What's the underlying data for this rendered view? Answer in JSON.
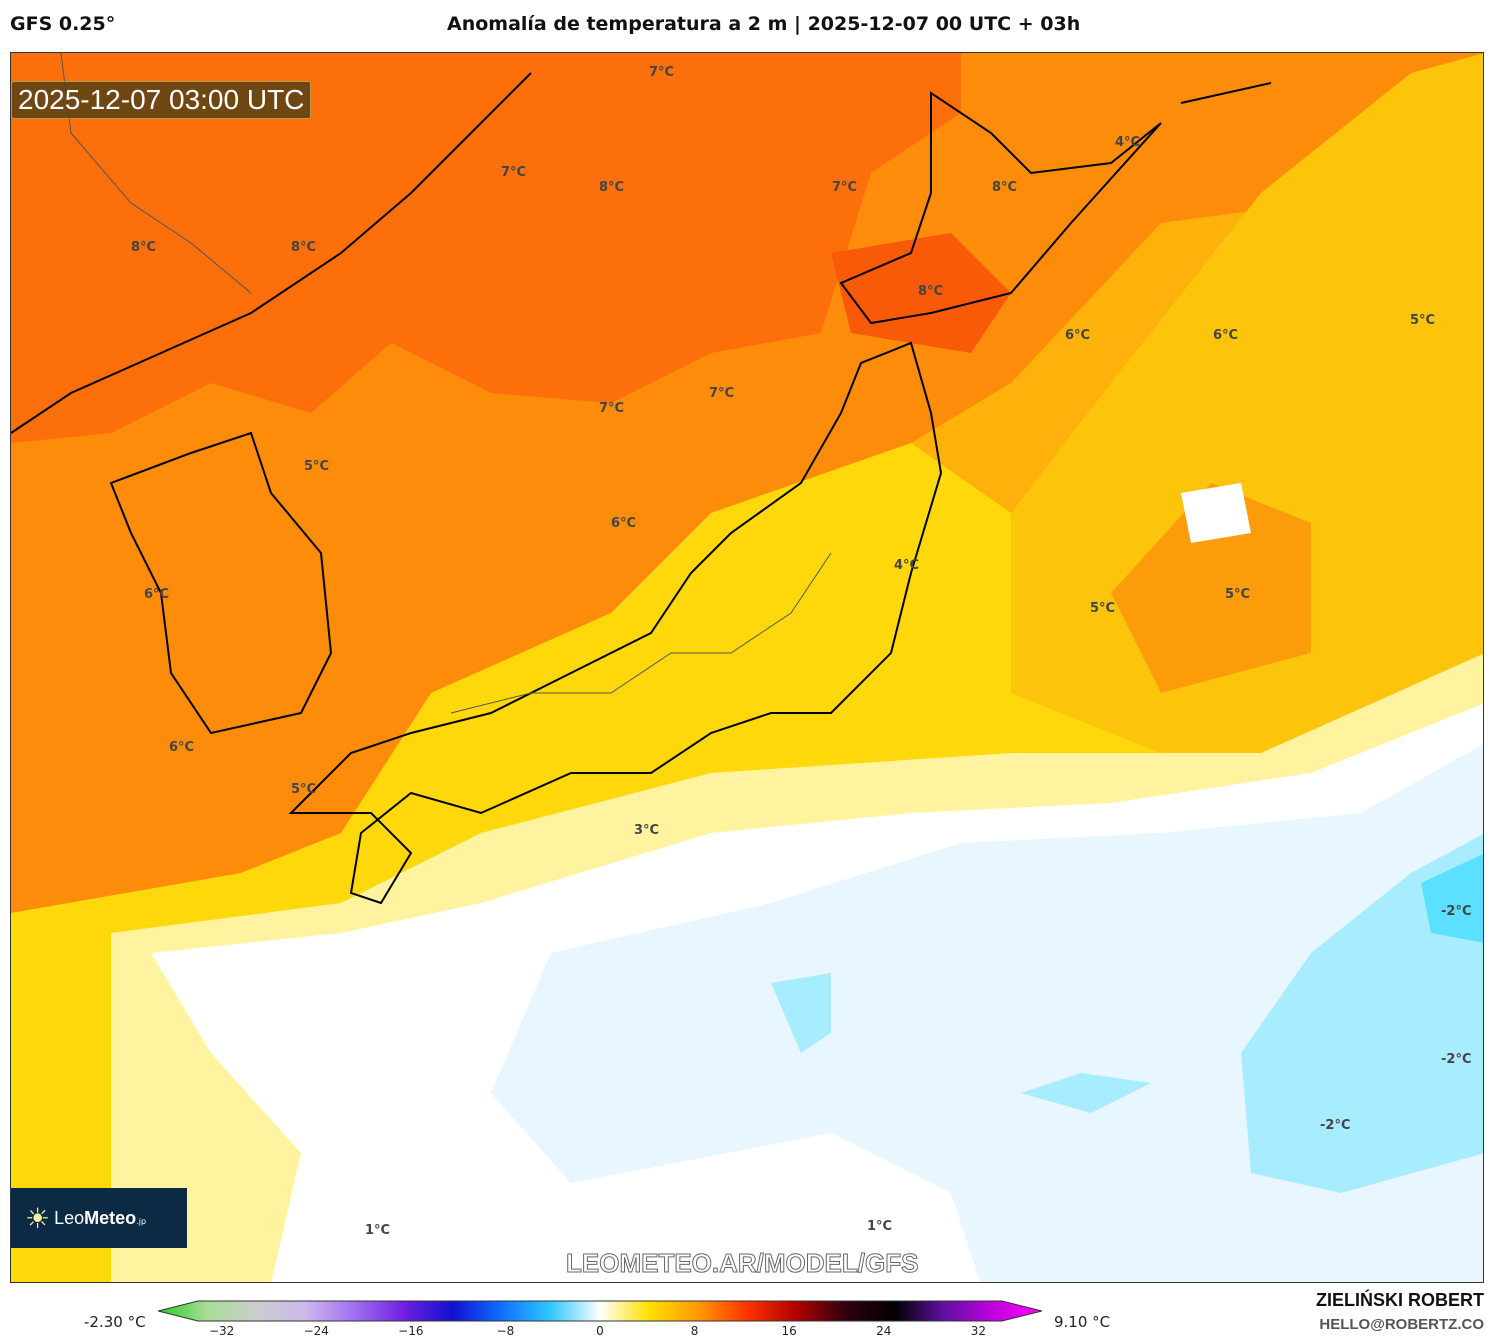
{
  "header": {
    "model": "GFS 0.25°",
    "title": "Anomalía de temperatura a 2 m | 2025-12-07 00 UTC + 03h"
  },
  "map": {
    "timestamp": "2025-12-07 03:00 UTC",
    "watermark": "LEOMETEO.AR/MODEL/GFS",
    "logo": {
      "text_light": "Leo",
      "text_bold": "Meteo",
      "suffix": ".jp"
    },
    "contour_labels": [
      "7°C",
      "7°C",
      "8°C",
      "7°C",
      "8°C",
      "4°C",
      "8°C",
      "8°C",
      "8°C",
      "6°C",
      "6°C",
      "5°C",
      "7°C",
      "7°C",
      "5°C",
      "6°C",
      "4°C",
      "6°C",
      "5°C",
      "5°C",
      "6°C",
      "5°C",
      "3°C",
      "-2°C",
      "-2°C",
      "-2°C",
      "1°C",
      "1°C"
    ]
  },
  "colorbar": {
    "min_label": "-2.30 °C",
    "max_label": "9.10 °C",
    "ticks": [
      "−32",
      "−24",
      "−16",
      "−8",
      "0",
      "8",
      "16",
      "24",
      "32"
    ],
    "range": [
      -34,
      34
    ],
    "colors": [
      "#22cc22",
      "#aadd99",
      "#cccccc",
      "#ccb8ee",
      "#a070f0",
      "#7020e0",
      "#1010d0",
      "#1070ff",
      "#30c8ff",
      "#ffffff",
      "#ffe000",
      "#ff9900",
      "#ff3300",
      "#b00000",
      "#300010",
      "#000000",
      "#6010a0",
      "#c000e0",
      "#ff00ff"
    ]
  },
  "footer": {
    "author": "ZIELIŃSKI ROBERT",
    "email": "HELLO@ROBERTZ.CO"
  }
}
